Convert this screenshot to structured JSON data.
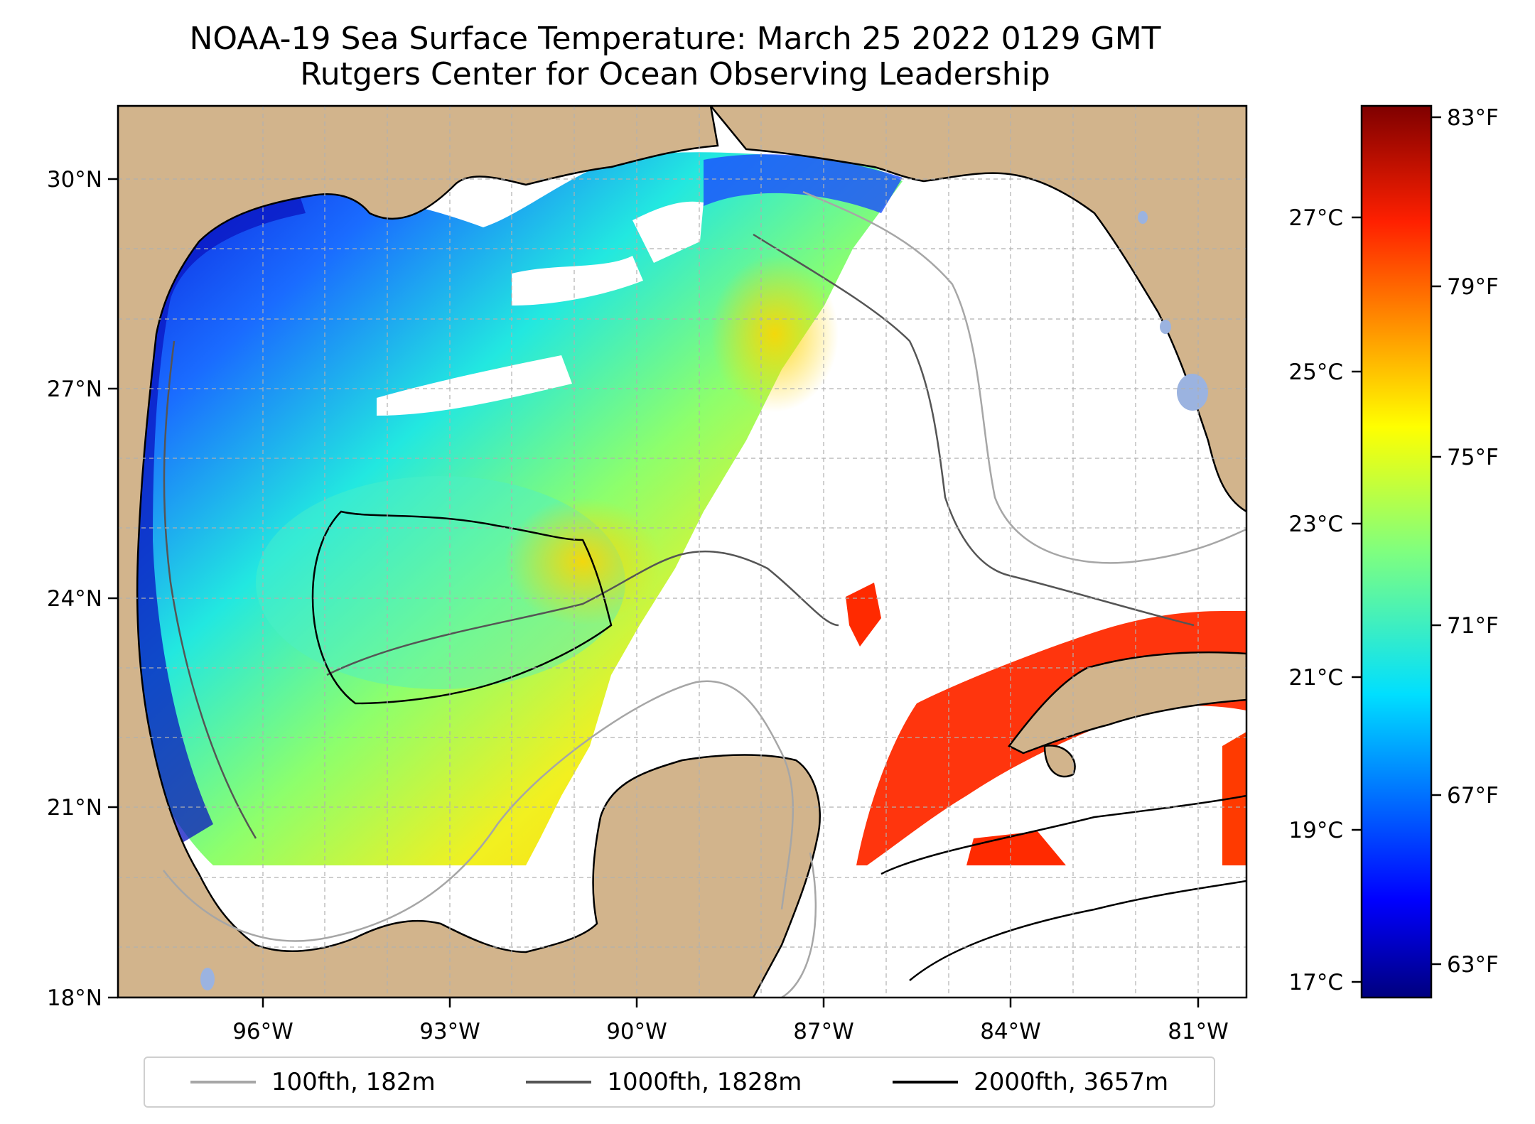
{
  "title": "NOAA-19 Sea Surface Temperature: March 25 2022 0129 GMT",
  "subtitle": "Rutgers Center for Ocean Observing Leadership",
  "map": {
    "lon_ticks": [
      "96°W",
      "93°W",
      "90°W",
      "87°W",
      "84°W",
      "81°W"
    ],
    "lat_ticks": [
      "30°N",
      "27°N",
      "24°N",
      "21°N",
      "18°N"
    ],
    "land_color": "#d2b48c",
    "lake_color": "#9bb3e0",
    "extent": {
      "lon_min": -98.2,
      "lon_max": -80.2,
      "lat_min": 18.0,
      "lat_max": 31.0
    }
  },
  "colorbar": {
    "celsius_ticks": [
      "27°C",
      "25°C",
      "23°C",
      "21°C",
      "19°C",
      "17°C"
    ],
    "fahrenheit_ticks": [
      "83°F",
      "79°F",
      "75°F",
      "71°F",
      "67°F",
      "63°F"
    ],
    "colormap": "jet",
    "stops": [
      "#00007f",
      "#0000ff",
      "#007fff",
      "#00ffff",
      "#7fff7f",
      "#ffff00",
      "#ff7f00",
      "#ff0000",
      "#7f0000"
    ]
  },
  "legend": [
    {
      "label": "100fth, 182m",
      "color": "#a6a6a6"
    },
    {
      "label": "1000fth, 1828m",
      "color": "#555555"
    },
    {
      "label": "2000fth, 3657m",
      "color": "#000000"
    }
  ]
}
